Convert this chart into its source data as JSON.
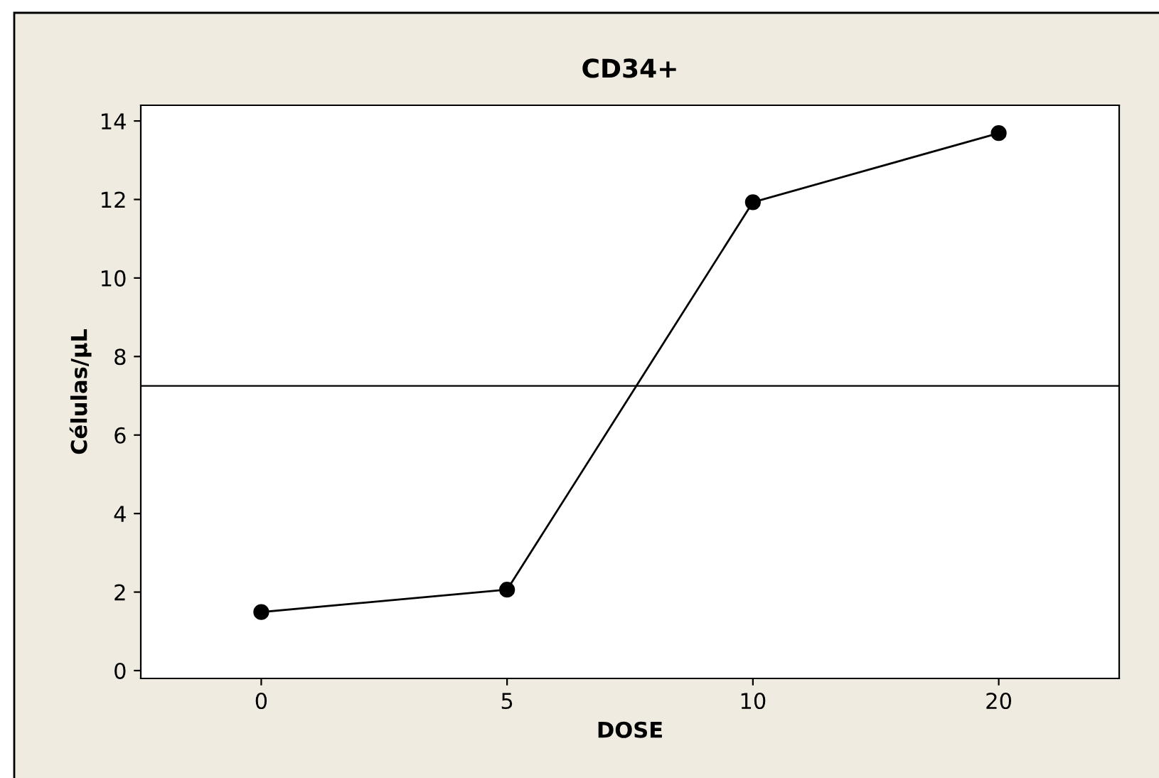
{
  "chart_data": {
    "type": "line",
    "title": "CD34+",
    "xlabel": "DOSE",
    "ylabel": "Células/µL",
    "categories": [
      "0",
      "5",
      "10",
      "20"
    ],
    "series": [
      {
        "color": "#000000",
        "values": [
          1.49,
          2.06,
          11.93,
          13.69
        ]
      }
    ],
    "ylim": [
      -0.2,
      14.4
    ],
    "yticks": [
      0,
      2,
      4,
      6,
      8,
      10,
      12,
      14
    ],
    "ref_lines": [
      {
        "axis": "y",
        "value": 7.25,
        "color": "#000000"
      }
    ],
    "marker": "circle",
    "line_style": "solid",
    "grid": false,
    "legend": false
  }
}
